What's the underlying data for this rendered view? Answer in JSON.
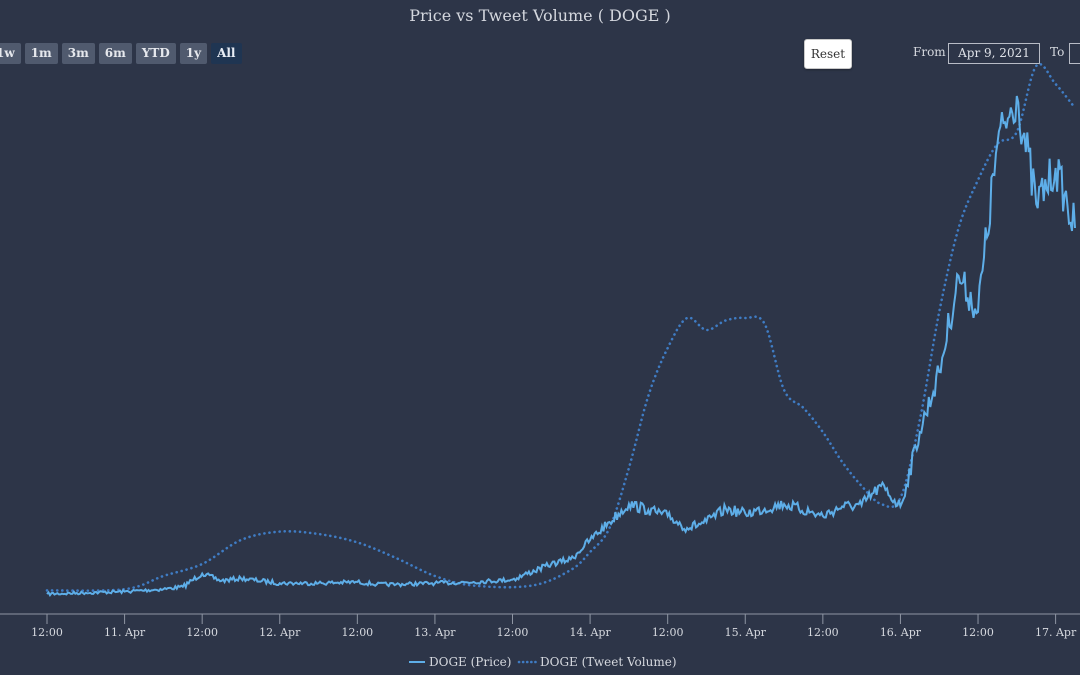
{
  "title": "Price vs Tweet Volume ( DOGE )",
  "range_selector": {
    "buttons": [
      "1w",
      "1m",
      "3m",
      "6m",
      "YTD",
      "1y",
      "All"
    ],
    "active": "All"
  },
  "reset_label": "Reset",
  "from_label": "From",
  "from_value": "Apr 9, 2021",
  "to_label": "To",
  "to_value": "",
  "colors": {
    "background": "#2d3548",
    "price": "#5eaee8",
    "tweet": "#3f7cc4"
  },
  "chart_data": {
    "type": "line",
    "title": "Price vs Tweet Volume ( DOGE )",
    "x_ticks": [
      "12:00",
      "11. Apr",
      "12:00",
      "12. Apr",
      "12:00",
      "13. Apr",
      "12:00",
      "14. Apr",
      "12:00",
      "15. Apr",
      "12:00",
      "16. Apr",
      "12:00",
      "17. Apr"
    ],
    "xlim": [
      "2021-04-10T09:00",
      "2021-04-17T00:00"
    ],
    "grid": false,
    "legend": "bottom-center",
    "series": [
      {
        "name": "DOGE (Price)",
        "style": "solid",
        "x": [
          "2021-04-10T09:00",
          "2021-04-10T15:00",
          "2021-04-10T21:00",
          "2021-04-11T03:00",
          "2021-04-11T06:00",
          "2021-04-11T09:00",
          "2021-04-11T12:00",
          "2021-04-11T15:00",
          "2021-04-11T21:00",
          "2021-04-12T03:00",
          "2021-04-12T09:00",
          "2021-04-12T12:00",
          "2021-04-12T15:00",
          "2021-04-12T21:00",
          "2021-04-13T03:00",
          "2021-04-13T09:00",
          "2021-04-13T15:00",
          "2021-04-13T18:00",
          "2021-04-13T21:00",
          "2021-04-14T00:00",
          "2021-04-14T03:00",
          "2021-04-14T06:00",
          "2021-04-14T09:00",
          "2021-04-14T12:00",
          "2021-04-14T15:00",
          "2021-04-14T18:00",
          "2021-04-14T21:00",
          "2021-04-15T03:00",
          "2021-04-15T09:00",
          "2021-04-15T12:00",
          "2021-04-15T15:00",
          "2021-04-15T18:00",
          "2021-04-15T21:00",
          "2021-04-16T00:00",
          "2021-04-16T03:00",
          "2021-04-16T06:00",
          "2021-04-16T09:00",
          "2021-04-16T12:00",
          "2021-04-16T15:00",
          "2021-04-16T18:00",
          "2021-04-16T21:00",
          "2021-04-17T00:00"
        ],
        "y": [
          5,
          6,
          7,
          9,
          11,
          22,
          16,
          18,
          14,
          14,
          15,
          13,
          13,
          14,
          15,
          17,
          30,
          34,
          50,
          65,
          80,
          75,
          70,
          60,
          65,
          76,
          72,
          80,
          70,
          78,
          79,
          95,
          78,
          140,
          190,
          270,
          240,
          380,
          420,
          330,
          360,
          310
        ]
      },
      {
        "name": "DOGE (Tweet Volume)",
        "style": "dotted",
        "x": [
          "2021-04-10T09:00",
          "2021-04-10T21:00",
          "2021-04-11T03:00",
          "2021-04-11T09:00",
          "2021-04-11T15:00",
          "2021-04-11T21:00",
          "2021-04-12T03:00",
          "2021-04-12T09:00",
          "2021-04-12T15:00",
          "2021-04-12T21:00",
          "2021-04-13T03:00",
          "2021-04-13T12:00",
          "2021-04-13T18:00",
          "2021-04-13T21:00",
          "2021-04-14T00:00",
          "2021-04-14T03:00",
          "2021-04-14T06:00",
          "2021-04-14T09:00",
          "2021-04-14T12:00",
          "2021-04-14T15:00",
          "2021-04-14T18:00",
          "2021-04-14T21:00",
          "2021-04-15T00:00",
          "2021-04-15T03:00",
          "2021-04-15T06:00",
          "2021-04-15T09:00",
          "2021-04-15T12:00",
          "2021-04-15T15:00",
          "2021-04-15T18:00",
          "2021-04-15T21:00",
          "2021-04-16T00:00",
          "2021-04-16T03:00",
          "2021-04-16T06:00",
          "2021-04-16T09:00",
          "2021-04-16T12:00",
          "2021-04-16T15:00",
          "2021-04-16T18:00",
          "2021-04-16T21:00",
          "2021-04-17T00:00"
        ],
        "y": [
          8,
          9,
          20,
          30,
          50,
          57,
          55,
          48,
          35,
          20,
          12,
          12,
          25,
          40,
          60,
          110,
          170,
          210,
          235,
          225,
          233,
          235,
          230,
          175,
          160,
          140,
          115,
          95,
          80,
          85,
          150,
          240,
          310,
          350,
          380,
          390,
          445,
          430,
          410
        ]
      }
    ]
  }
}
